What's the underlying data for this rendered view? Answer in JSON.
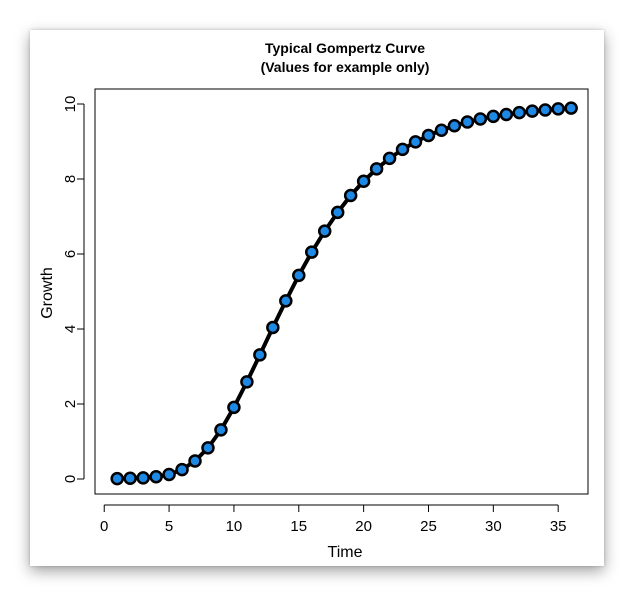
{
  "chart_data": {
    "type": "line",
    "title": "Typical Gompertz Curve",
    "subtitle": "(Values for example only)",
    "xlabel": "Time",
    "ylabel": "Growth",
    "xlim": [
      1,
      36
    ],
    "ylim": [
      0,
      10
    ],
    "x_ticks": [
      0,
      5,
      10,
      15,
      20,
      25,
      30,
      35
    ],
    "y_ticks": [
      0,
      2,
      4,
      6,
      8,
      10
    ],
    "grid": false,
    "line_color": "#000000",
    "point_fill": "#1e88e5",
    "series": [
      {
        "x": [
          1,
          2,
          3,
          4,
          5,
          6,
          7,
          8,
          9,
          10,
          11,
          12,
          13,
          14,
          15,
          16,
          17,
          18,
          19,
          20,
          21,
          22,
          23,
          24,
          25,
          26,
          27,
          28,
          29,
          30,
          31,
          32,
          33,
          34,
          35,
          36
        ],
        "values": [
          0.01,
          0.02,
          0.03,
          0.06,
          0.12,
          0.25,
          0.48,
          0.83,
          1.31,
          1.91,
          2.59,
          3.31,
          4.04,
          4.75,
          5.43,
          6.05,
          6.61,
          7.11,
          7.56,
          7.94,
          8.27,
          8.55,
          8.79,
          8.99,
          9.16,
          9.3,
          9.42,
          9.52,
          9.6,
          9.67,
          9.72,
          9.77,
          9.81,
          9.84,
          9.87,
          9.89
        ]
      }
    ]
  }
}
